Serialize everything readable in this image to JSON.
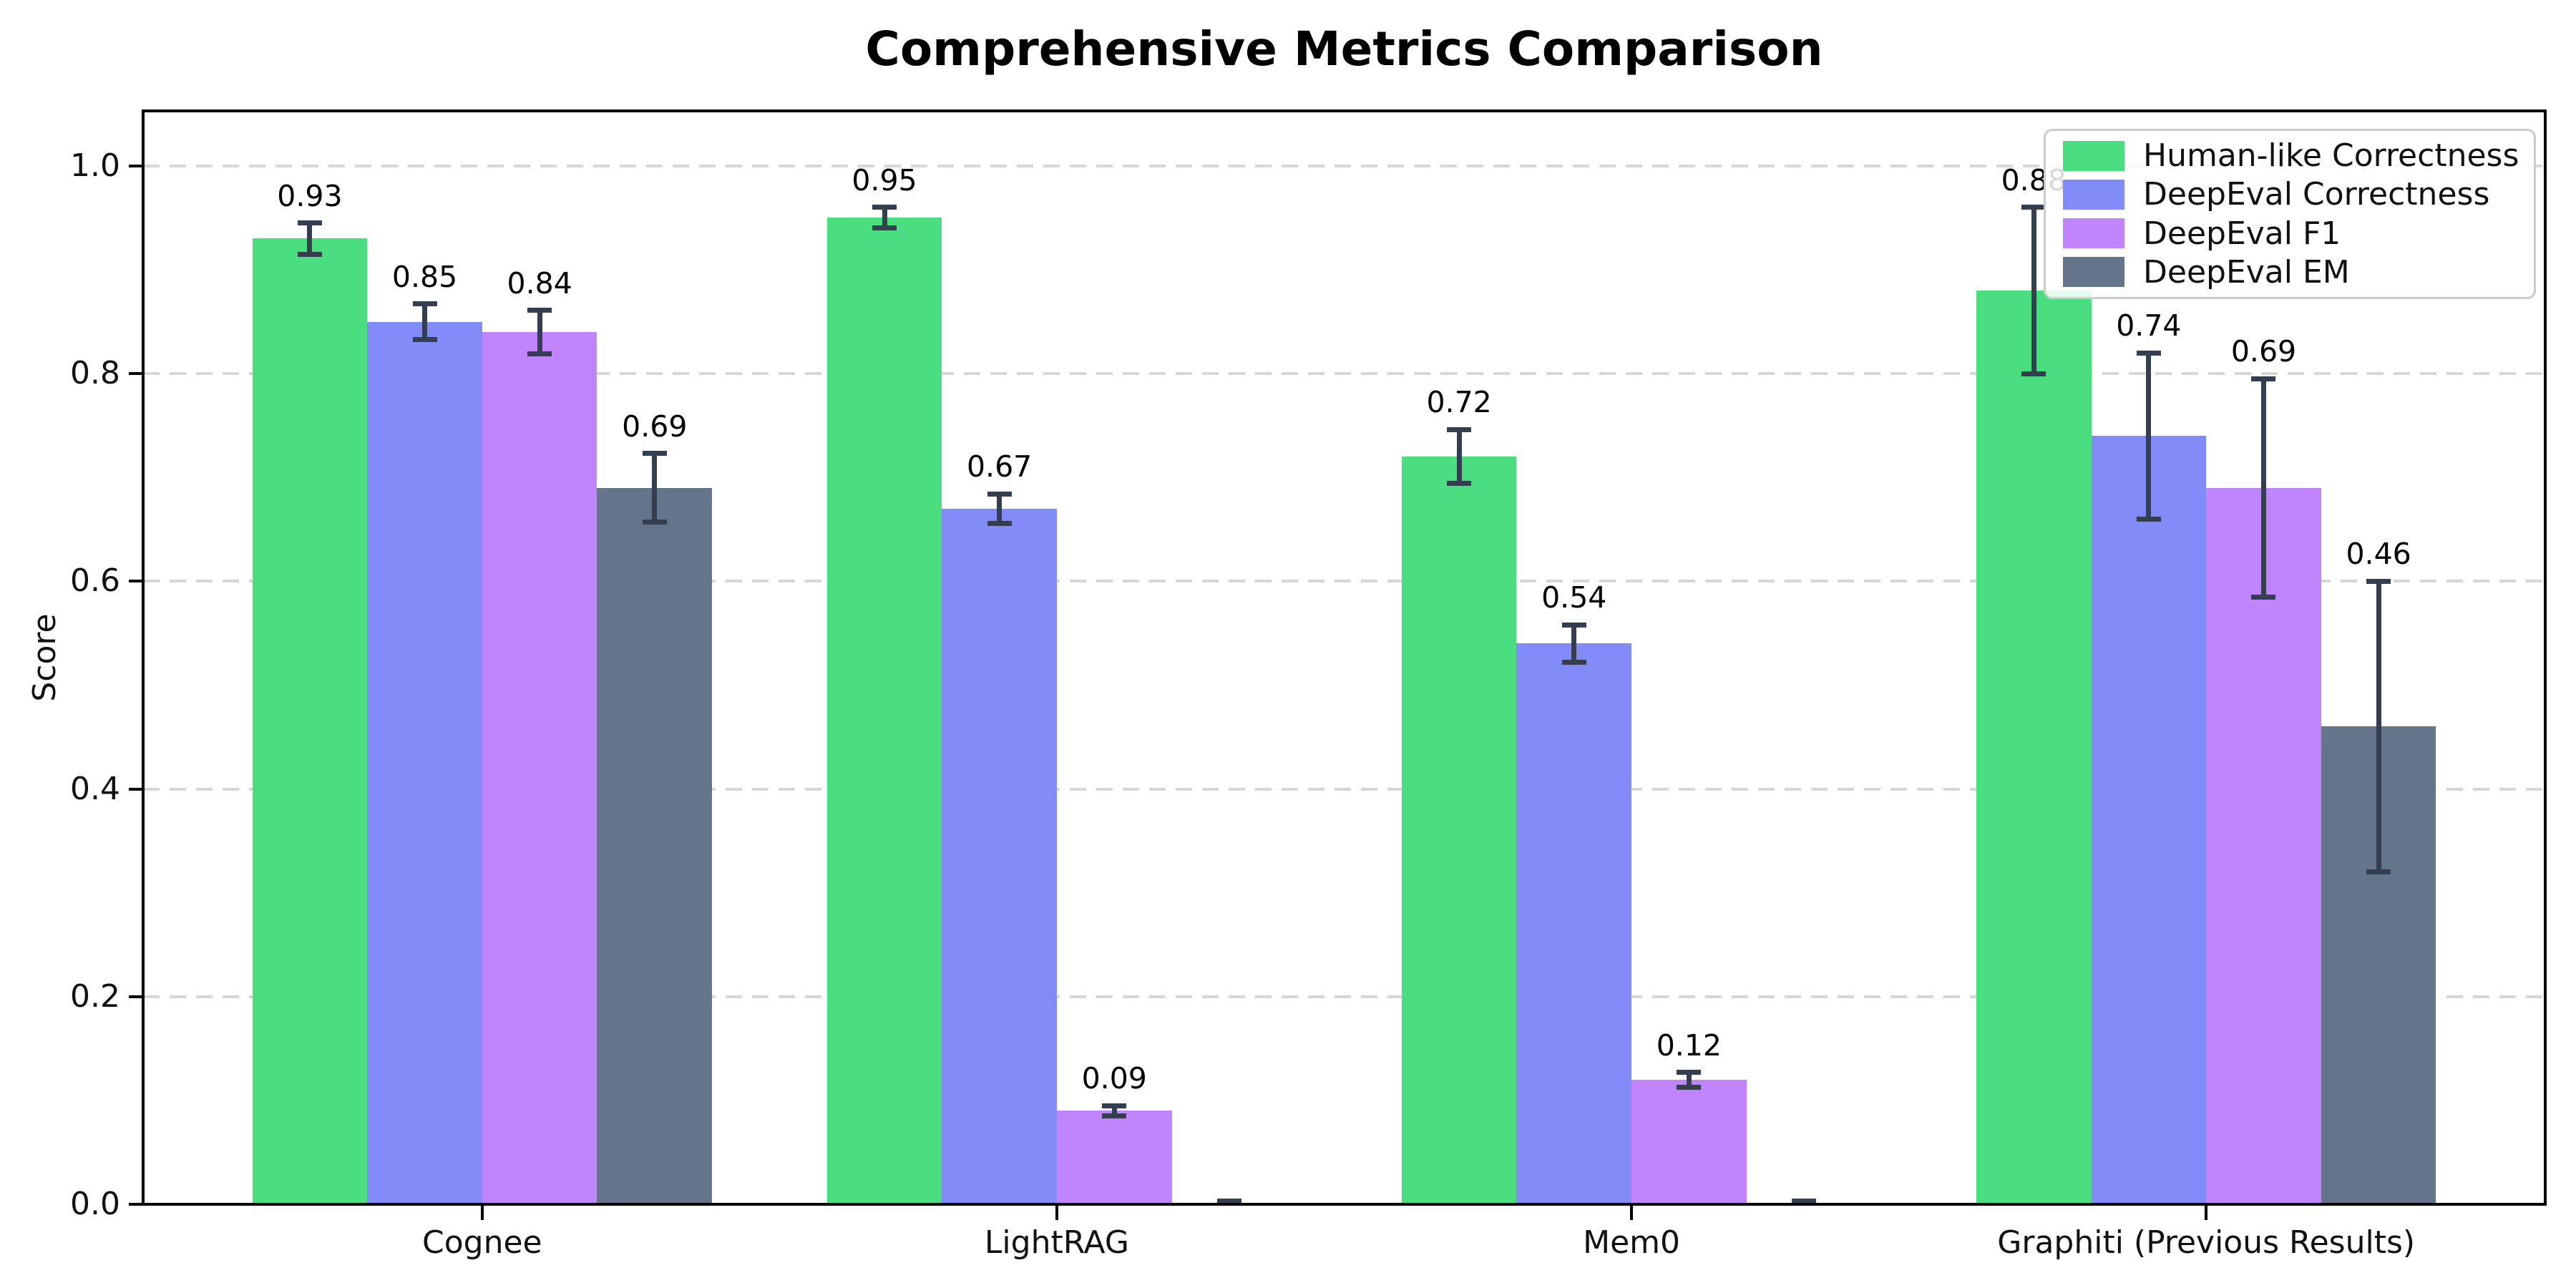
{
  "chart_data": {
    "type": "bar",
    "title": "Comprehensive Metrics Comparison",
    "ylabel": "Score",
    "xlabel": "",
    "categories": [
      "Cognee",
      "LightRAG",
      "Mem0",
      "Graphiti (Previous Results)"
    ],
    "yticks": [
      "0.0",
      "0.2",
      "0.4",
      "0.6",
      "0.8",
      "1.0"
    ],
    "ylim": [
      0,
      1.05
    ],
    "grid": "dashed-horizontal",
    "legend_position": "upper-right",
    "error_bar_color": "#343e4e",
    "series": [
      {
        "name": "Human-like Correctness",
        "color": "#4ade80",
        "values": [
          0.93,
          0.95,
          0.72,
          0.88
        ],
        "errors": [
          0.015,
          0.01,
          0.026,
          0.08
        ],
        "labels": [
          "0.93",
          "0.95",
          "0.72",
          "0.88"
        ]
      },
      {
        "name": "DeepEval Correctness",
        "color": "#818cf8",
        "values": [
          0.85,
          0.67,
          0.54,
          0.74
        ],
        "errors": [
          0.017,
          0.014,
          0.018,
          0.08
        ],
        "labels": [
          "0.85",
          "0.67",
          "0.54",
          "0.74"
        ]
      },
      {
        "name": "DeepEval F1",
        "color": "#c084fc",
        "values": [
          0.84,
          0.09,
          0.12,
          0.69
        ],
        "errors": [
          0.021,
          0.005,
          0.007,
          0.105
        ],
        "labels": [
          "0.84",
          "0.09",
          "0.12",
          "0.69"
        ]
      },
      {
        "name": "DeepEval EM",
        "color": "#64748b",
        "values": [
          0.69,
          0.0,
          0.0,
          0.46
        ],
        "errors": [
          0.033,
          0.003,
          0.003,
          0.14
        ],
        "labels": [
          "0.69",
          null,
          null,
          "0.46"
        ]
      }
    ]
  }
}
